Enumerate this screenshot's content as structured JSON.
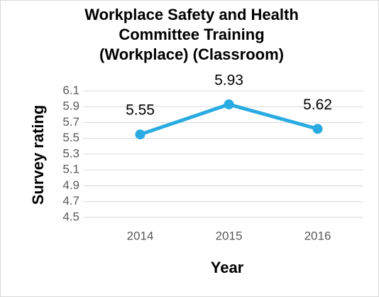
{
  "chart_data": {
    "type": "line",
    "title": [
      "Workplace Safety and Health",
      "Committee Training",
      "(Workplace) (Classroom)"
    ],
    "x_label": "Year",
    "y_label": "Survey rating",
    "categories": [
      "2014",
      "2015",
      "2016"
    ],
    "series": [
      {
        "name": "Survey rating",
        "color": "#29abe2",
        "values": [
          5.55,
          5.93,
          5.62
        ]
      }
    ],
    "ylim": [
      4.5,
      6.1
    ],
    "yticks": [
      4.5,
      4.7,
      4.9,
      5.1,
      5.3,
      5.5,
      5.7,
      5.9,
      6.1
    ],
    "grid": true
  }
}
